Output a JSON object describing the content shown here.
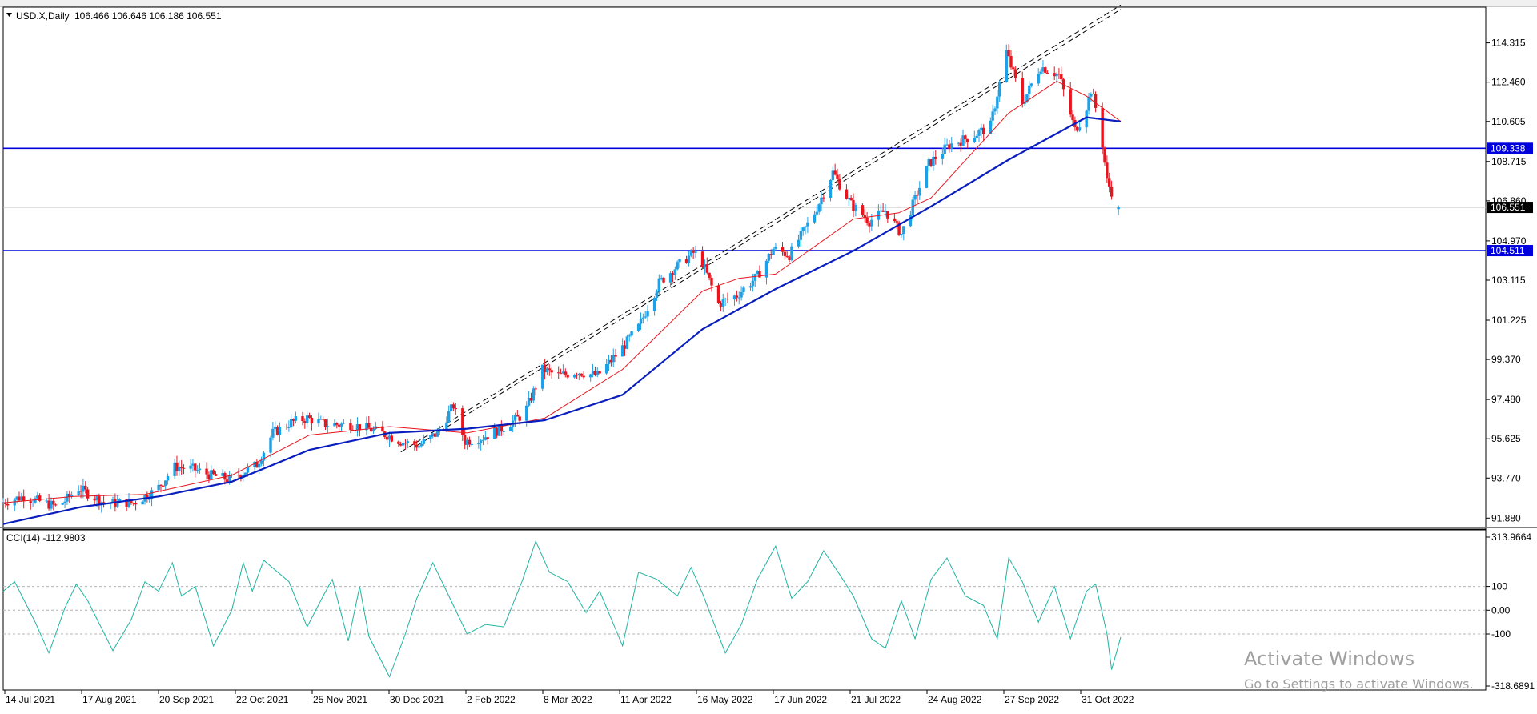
{
  "header": {
    "symbol_text": "USD.X,Daily",
    "ohlc_text": "106.466 106.646 106.186 106.551"
  },
  "indicator": {
    "label": "CCI(14) -112.9803"
  },
  "watermark": {
    "line1": "Activate Windows",
    "line2": "Go to Settings to activate Windows."
  },
  "colors": {
    "bull": "#1ea0e6",
    "bear": "#e8141e",
    "ma_fast": "#e8141e",
    "ma_slow": "#0a1ebe",
    "hline": "#0000dc",
    "cci": "#1eb4a0"
  },
  "chart_data": [
    {
      "type": "candlestick",
      "title": "USD.X,Daily",
      "x_tick_labels": [
        "14 Jul 2021",
        "17 Aug 2021",
        "20 Sep 2021",
        "22 Oct 2021",
        "25 Nov 2021",
        "30 Dec 2021",
        "2 Feb 2022",
        "8 Mar 2022",
        "11 Apr 2022",
        "16 May 2022",
        "17 Jun 2022",
        "21 Jul 2022",
        "24 Aug 2022",
        "27 Sep 2022",
        "31 Oct 2022"
      ],
      "y_tick_labels": [
        "114.315",
        "112.460",
        "110.605",
        "108.715",
        "106.860",
        "104.970",
        "103.115",
        "101.225",
        "99.370",
        "97.480",
        "95.625",
        "93.770",
        "91.880"
      ],
      "ylim": [
        91.4,
        116.0
      ],
      "last_price": "106.551",
      "last": {
        "open": 106.466,
        "high": 106.646,
        "low": 106.186,
        "close": 106.551
      },
      "horizontal_levels": [
        {
          "label": "109.338",
          "value": 109.338
        },
        {
          "label": "104.511",
          "value": 104.511
        }
      ],
      "trendlines": [
        {
          "style": "dashed",
          "points": [
            [
              "4 Jan 2022",
              95.0
            ],
            [
              "15 Nov 2022",
              116.1
            ]
          ]
        },
        {
          "style": "dashed",
          "points": [
            [
              "11 Jan 2022",
              95.3
            ],
            [
              "15 Nov 2022",
              115.9
            ]
          ]
        }
      ],
      "close_path": [
        [
          "14 Jul 2021",
          92.6
        ],
        [
          "24 Jul 2021",
          92.9
        ],
        [
          "8 Aug 2021",
          92.4
        ],
        [
          "17 Aug 2021",
          93.3
        ],
        [
          "28 Aug 2021",
          92.6
        ],
        [
          "10 Sep 2021",
          92.6
        ],
        [
          "20 Sep 2021",
          93.2
        ],
        [
          "28 Sep 2021",
          94.3
        ],
        [
          "6 Oct 2021",
          94.2
        ],
        [
          "14 Oct 2021",
          93.9
        ],
        [
          "22 Oct 2021",
          93.7
        ],
        [
          "3 Nov 2021",
          94.4
        ],
        [
          "10 Nov 2021",
          95.9
        ],
        [
          "18 Nov 2021",
          96.4
        ],
        [
          "25 Nov 2021",
          96.6
        ],
        [
          "3 Dec 2021",
          96.3
        ],
        [
          "14 Dec 2021",
          96.3
        ],
        [
          "22 Dec 2021",
          96.1
        ],
        [
          "30 Dec 2021",
          95.8
        ],
        [
          "5 Jan 2022",
          95.5
        ],
        [
          "13 Jan 2022",
          95.3
        ],
        [
          "21 Jan 2022",
          95.9
        ],
        [
          "28 Jan 2022",
          97.2
        ],
        [
          "2 Feb 2022",
          95.5
        ],
        [
          "10 Feb 2022",
          95.7
        ],
        [
          "18 Feb 2022",
          96.1
        ],
        [
          "28 Feb 2022",
          96.8
        ],
        [
          "8 Mar 2022",
          98.9
        ],
        [
          "15 Mar 2022",
          98.6
        ],
        [
          "23 Mar 2022",
          98.8
        ],
        [
          "1 Apr 2022",
          98.6
        ],
        [
          "11 Apr 2022",
          99.8
        ],
        [
          "19 Apr 2022",
          100.9
        ],
        [
          "28 Apr 2022",
          103.0
        ],
        [
          "5 May 2022",
          103.7
        ],
        [
          "13 May 2022",
          104.4
        ],
        [
          "16 May 2022",
          104.2
        ],
        [
          "24 May 2022",
          102.0
        ],
        [
          "1 Jun 2022",
          102.4
        ],
        [
          "10 Jun 2022",
          103.3
        ],
        [
          "17 Jun 2022",
          104.6
        ],
        [
          "24 Jun 2022",
          104.3
        ],
        [
          "5 Jul 2022",
          106.3
        ],
        [
          "13 Jul 2022",
          108.2
        ],
        [
          "21 Jul 2022",
          106.7
        ],
        [
          "29 Jul 2022",
          105.9
        ],
        [
          "5 Aug 2022",
          106.4
        ],
        [
          "12 Aug 2022",
          105.3
        ],
        [
          "24 Aug 2022",
          108.6
        ],
        [
          "2 Sep 2022",
          109.5
        ],
        [
          "12 Sep 2022",
          109.9
        ],
        [
          "20 Sep 2022",
          110.4
        ],
        [
          "27 Sep 2022",
          113.9
        ],
        [
          "4 Oct 2022",
          111.5
        ],
        [
          "12 Oct 2022",
          113.2
        ],
        [
          "20 Oct 2022",
          112.8
        ],
        [
          "27 Oct 2022",
          110.2
        ],
        [
          "31 Oct 2022",
          110.9
        ],
        [
          "3 Nov 2022",
          112.1
        ],
        [
          "7 Nov 2022",
          110.4
        ],
        [
          "10 Nov 2022",
          107.8
        ],
        [
          "15 Nov 2022",
          106.55
        ]
      ],
      "series": [
        {
          "name": "",
          "kind": "moving_average_fast",
          "values": [
            [
              "14 Jul 2021",
              92.6
            ],
            [
              "14 Aug 2021",
              92.9
            ],
            [
              "14 Sep 2021",
              93.0
            ],
            [
              "22 Oct 2021",
              93.9
            ],
            [
              "25 Nov 2021",
              95.8
            ],
            [
              "30 Dec 2021",
              96.2
            ],
            [
              "2 Feb 2022",
              95.9
            ],
            [
              "8 Mar 2022",
              96.6
            ],
            [
              "11 Apr 2022",
              98.9
            ],
            [
              "16 May 2022",
              102.6
            ],
            [
              "1 Jun 2022",
              103.2
            ],
            [
              "17 Jun 2022",
              103.4
            ],
            [
              "21 Jul 2022",
              106.0
            ],
            [
              "10 Aug 2022",
              106.3
            ],
            [
              "24 Aug 2022",
              107.0
            ],
            [
              "27 Sep 2022",
              111.0
            ],
            [
              "18 Oct 2022",
              112.5
            ],
            [
              "31 Oct 2022",
              111.8
            ],
            [
              "15 Nov 2022",
              110.6
            ]
          ]
        },
        {
          "name": "",
          "kind": "moving_average_slow",
          "values": [
            [
              "14 Jul 2021",
              91.6
            ],
            [
              "17 Aug 2021",
              92.4
            ],
            [
              "20 Sep 2021",
              92.9
            ],
            [
              "22 Oct 2021",
              93.6
            ],
            [
              "25 Nov 2021",
              95.1
            ],
            [
              "30 Dec 2021",
              95.9
            ],
            [
              "2 Feb 2022",
              96.1
            ],
            [
              "8 Mar 2022",
              96.5
            ],
            [
              "11 Apr 2022",
              97.7
            ],
            [
              "16 May 2022",
              100.8
            ],
            [
              "17 Jun 2022",
              102.7
            ],
            [
              "21 Jul 2022",
              104.5
            ],
            [
              "24 Aug 2022",
              106.6
            ],
            [
              "27 Sep 2022",
              108.8
            ],
            [
              "31 Oct 2022",
              110.8
            ],
            [
              "15 Nov 2022",
              110.6
            ]
          ]
        }
      ]
    },
    {
      "type": "line",
      "title": "CCI(14) -112.9803",
      "y_tick_labels": [
        "313.9664",
        "100",
        "0.00",
        "-100",
        "-318.6891"
      ],
      "ylim": [
        -318.6891,
        313.9664
      ],
      "levels": [
        100,
        0,
        -100
      ],
      "series": [
        {
          "name": "",
          "values": [
            [
              "14 Jul 2021",
              80
            ],
            [
              "19 Jul 2021",
              120
            ],
            [
              "28 Jul 2021",
              -50
            ],
            [
              "3 Aug 2021",
              -180
            ],
            [
              "10 Aug 2021",
              10
            ],
            [
              "15 Aug 2021",
              110
            ],
            [
              "20 Aug 2021",
              40
            ],
            [
              "31 Aug 2021",
              -170
            ],
            [
              "8 Sep 2021",
              -40
            ],
            [
              "14 Sep 2021",
              120
            ],
            [
              "20 Sep 2021",
              80
            ],
            [
              "26 Sep 2021",
              200
            ],
            [
              "30 Sep 2021",
              60
            ],
            [
              "6 Oct 2021",
              100
            ],
            [
              "14 Oct 2021",
              -150
            ],
            [
              "22 Oct 2021",
              0
            ],
            [
              "27 Oct 2021",
              200
            ],
            [
              "31 Oct 2021",
              80
            ],
            [
              "5 Nov 2021",
              210
            ],
            [
              "16 Nov 2021",
              120
            ],
            [
              "24 Nov 2021",
              -70
            ],
            [
              "1 Dec 2021",
              60
            ],
            [
              "5 Dec 2021",
              130
            ],
            [
              "12 Dec 2021",
              -130
            ],
            [
              "17 Dec 2021",
              100
            ],
            [
              "21 Dec 2021",
              -110
            ],
            [
              "30 Dec 2021",
              -280
            ],
            [
              "6 Jan 2022",
              -100
            ],
            [
              "11 Jan 2022",
              50
            ],
            [
              "18 Jan 2022",
              200
            ],
            [
              "25 Jan 2022",
              60
            ],
            [
              "2 Feb 2022",
              -100
            ],
            [
              "10 Feb 2022",
              -60
            ],
            [
              "18 Feb 2022",
              -70
            ],
            [
              "26 Feb 2022",
              120
            ],
            [
              "4 Mar 2022",
              290
            ],
            [
              "10 Mar 2022",
              160
            ],
            [
              "18 Mar 2022",
              120
            ],
            [
              "26 Mar 2022",
              -10
            ],
            [
              "1 Apr 2022",
              80
            ],
            [
              "11 Apr 2022",
              -150
            ],
            [
              "18 Apr 2022",
              160
            ],
            [
              "26 Apr 2022",
              130
            ],
            [
              "5 May 2022",
              60
            ],
            [
              "11 May 2022",
              180
            ],
            [
              "16 May 2022",
              70
            ],
            [
              "26 May 2022",
              -180
            ],
            [
              "2 Jun 2022",
              -60
            ],
            [
              "9 Jun 2022",
              130
            ],
            [
              "17 Jun 2022",
              270
            ],
            [
              "24 Jun 2022",
              50
            ],
            [
              "1 Jul 2022",
              120
            ],
            [
              "8 Jul 2022",
              250
            ],
            [
              "15 Jul 2022",
              150
            ],
            [
              "21 Jul 2022",
              60
            ],
            [
              "29 Jul 2022",
              -120
            ],
            [
              "4 Aug 2022",
              -160
            ],
            [
              "11 Aug 2022",
              40
            ],
            [
              "17 Aug 2022",
              -120
            ],
            [
              "24 Aug 2022",
              130
            ],
            [
              "31 Aug 2022",
              220
            ],
            [
              "8 Sep 2022",
              60
            ],
            [
              "16 Sep 2022",
              20
            ],
            [
              "22 Sep 2022",
              -120
            ],
            [
              "27 Sep 2022",
              220
            ],
            [
              "3 Oct 2022",
              120
            ],
            [
              "10 Oct 2022",
              -50
            ],
            [
              "17 Oct 2022",
              100
            ],
            [
              "24 Oct 2022",
              -120
            ],
            [
              "31 Oct 2022",
              80
            ],
            [
              "4 Nov 2022",
              110
            ],
            [
              "9 Nov 2022",
              -100
            ],
            [
              "11 Nov 2022",
              -250
            ],
            [
              "15 Nov 2022",
              -113
            ]
          ]
        }
      ]
    }
  ]
}
